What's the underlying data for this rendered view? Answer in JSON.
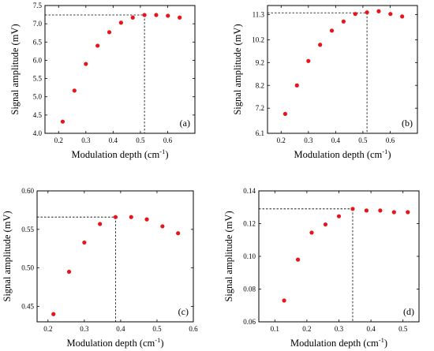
{
  "chart_data": [
    {
      "type": "scatter",
      "id": "a",
      "panel_label": "(a)",
      "xlabel": "Modulation depth (cm",
      "xlabel_sup": "-1",
      "xlabel_end": ")",
      "ylabel": "Signal amplitude (mV)",
      "xlim": [
        0.15,
        0.7
      ],
      "ylim": [
        4.0,
        7.5
      ],
      "xticks": [
        0.2,
        0.3,
        0.4,
        0.5,
        0.6
      ],
      "xtick_labels": [
        "0.2",
        "0.3",
        "0.4",
        "0.5",
        "0.6"
      ],
      "yticks": [
        4.0,
        4.5,
        5.0,
        5.5,
        6.0,
        6.5,
        7.0,
        7.5
      ],
      "ytick_labels": [
        "4.0",
        "4.5",
        "5.0",
        "5.5",
        "6.0",
        "6.5",
        "7.0",
        "7.5"
      ],
      "x": [
        0.215,
        0.258,
        0.3,
        0.343,
        0.386,
        0.429,
        0.472,
        0.515,
        0.558,
        0.601,
        0.644
      ],
      "y": [
        4.32,
        5.17,
        5.9,
        6.4,
        6.77,
        7.03,
        7.17,
        7.24,
        7.24,
        7.22,
        7.17
      ],
      "guide": {
        "x": 0.515,
        "y": 7.24
      },
      "color": "#e8141c"
    },
    {
      "type": "scatter",
      "id": "b",
      "panel_label": "(b)",
      "xlabel": "Modulation depth (cm",
      "xlabel_sup": "-1",
      "xlabel_end": ")",
      "ylabel": "Signal amplitude (mV)",
      "xlim": [
        0.15,
        0.7
      ],
      "ylim": [
        6.1,
        11.7
      ],
      "xticks": [
        0.2,
        0.3,
        0.4,
        0.5,
        0.6
      ],
      "xtick_labels": [
        "0.2",
        "0.3",
        "0.4",
        "0.5",
        "0.6"
      ],
      "yticks": [
        6.1,
        7.2,
        8.2,
        9.2,
        10.2,
        11.3
      ],
      "ytick_labels": [
        "6.1",
        "7.2",
        "8.2",
        "9.2",
        "10.2",
        "11.3"
      ],
      "x": [
        0.215,
        0.258,
        0.3,
        0.343,
        0.386,
        0.429,
        0.472,
        0.515,
        0.558,
        0.601,
        0.644
      ],
      "y": [
        6.95,
        8.2,
        9.27,
        9.98,
        10.6,
        11.0,
        11.33,
        11.4,
        11.45,
        11.33,
        11.22
      ],
      "guide": {
        "x": 0.515,
        "y": 11.38
      },
      "color": "#e8141c"
    },
    {
      "type": "scatter",
      "id": "c",
      "panel_label": "(c)",
      "xlabel": "Modulation depth (cm",
      "xlabel_sup": "-1",
      "xlabel_end": ")",
      "ylabel": "Signal amplitude (mV)",
      "xlim": [
        0.17,
        0.6
      ],
      "ylim": [
        0.43,
        0.6
      ],
      "xticks": [
        0.2,
        0.3,
        0.4,
        0.5,
        0.6
      ],
      "xtick_labels": [
        "0.2",
        "0.3",
        "0.4",
        "0.5",
        "0.6"
      ],
      "yticks": [
        0.45,
        0.5,
        0.55,
        0.6
      ],
      "ytick_labels": [
        "0.45",
        "0.50",
        "0.55",
        "0.60"
      ],
      "x": [
        0.215,
        0.258,
        0.3,
        0.343,
        0.386,
        0.429,
        0.472,
        0.515,
        0.558
      ],
      "y": [
        0.44,
        0.495,
        0.533,
        0.557,
        0.566,
        0.566,
        0.563,
        0.554,
        0.545
      ],
      "guide": {
        "x": 0.386,
        "y": 0.566
      },
      "color": "#e8141c"
    },
    {
      "type": "scatter",
      "id": "d",
      "panel_label": "(d)",
      "xlabel": "Modulation depth (cm",
      "xlabel_sup": "-1",
      "xlabel_end": ")",
      "ylabel": "Signal amplitude (mV)",
      "xlim": [
        0.05,
        0.55
      ],
      "ylim": [
        0.06,
        0.14
      ],
      "xticks": [
        0.1,
        0.2,
        0.3,
        0.4,
        0.5
      ],
      "xtick_labels": [
        "0.1",
        "0.2",
        "0.3",
        "0.4",
        "0.5"
      ],
      "yticks": [
        0.06,
        0.08,
        0.1,
        0.12,
        0.14
      ],
      "ytick_labels": [
        "0.06",
        "0.08",
        "0.10",
        "0.12",
        "0.14"
      ],
      "x": [
        0.129,
        0.172,
        0.215,
        0.258,
        0.3,
        0.343,
        0.386,
        0.429,
        0.472,
        0.515
      ],
      "y": [
        0.073,
        0.098,
        0.1145,
        0.1195,
        0.1245,
        0.129,
        0.128,
        0.128,
        0.127,
        0.127
      ],
      "guide": {
        "x": 0.343,
        "y": 0.129
      },
      "color": "#e8141c"
    }
  ]
}
